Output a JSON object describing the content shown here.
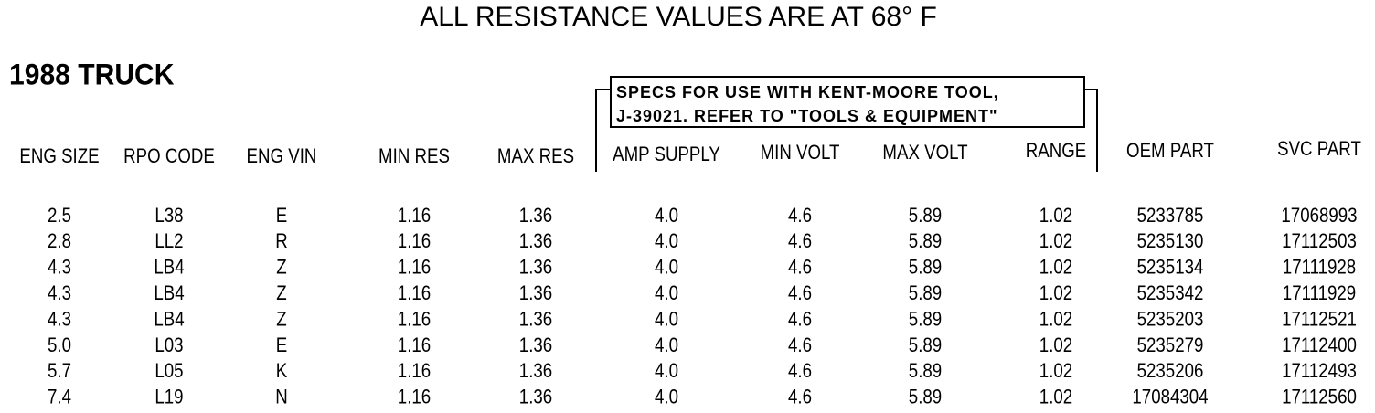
{
  "header": {
    "title": "ALL RESISTANCE VALUES ARE AT 68° F",
    "section": "1988 TRUCK"
  },
  "note": {
    "lines": [
      "SPECS FOR USE WITH KENT-MOORE TOOL,",
      "J-39021. REFER TO \"TOOLS & EQUIPMENT\""
    ]
  },
  "table": {
    "columns": [
      "ENG SIZE",
      "RPO CODE",
      "ENG VIN",
      "MIN RES",
      "MAX RES",
      "AMP SUPPLY",
      "MIN VOLT",
      "MAX VOLT",
      "RANGE",
      "OEM PART",
      "SVC PART"
    ],
    "rows": [
      [
        "2.5",
        "L38",
        "E",
        "1.16",
        "1.36",
        "4.0",
        "4.6",
        "5.89",
        "1.02",
        "5233785",
        "17068993"
      ],
      [
        "2.8",
        "LL2",
        "R",
        "1.16",
        "1.36",
        "4.0",
        "4.6",
        "5.89",
        "1.02",
        "5235130",
        "17112503"
      ],
      [
        "4.3",
        "LB4",
        "Z",
        "1.16",
        "1.36",
        "4.0",
        "4.6",
        "5.89",
        "1.02",
        "5235134",
        "17111928"
      ],
      [
        "4.3",
        "LB4",
        "Z",
        "1.16",
        "1.36",
        "4.0",
        "4.6",
        "5.89",
        "1.02",
        "5235342",
        "17111929"
      ],
      [
        "4.3",
        "LB4",
        "Z",
        "1.16",
        "1.36",
        "4.0",
        "4.6",
        "5.89",
        "1.02",
        "5235203",
        "17112521"
      ],
      [
        "5.0",
        "L03",
        "E",
        "1.16",
        "1.36",
        "4.0",
        "4.6",
        "5.89",
        "1.02",
        "5235279",
        "17112400"
      ],
      [
        "5.7",
        "L05",
        "K",
        "1.16",
        "1.36",
        "4.0",
        "4.6",
        "5.89",
        "1.02",
        "5235206",
        "17112493"
      ],
      [
        "7.4",
        "L19",
        "N",
        "1.16",
        "1.36",
        "4.0",
        "4.6",
        "5.89",
        "1.02",
        "17084304",
        "17112560"
      ]
    ]
  }
}
